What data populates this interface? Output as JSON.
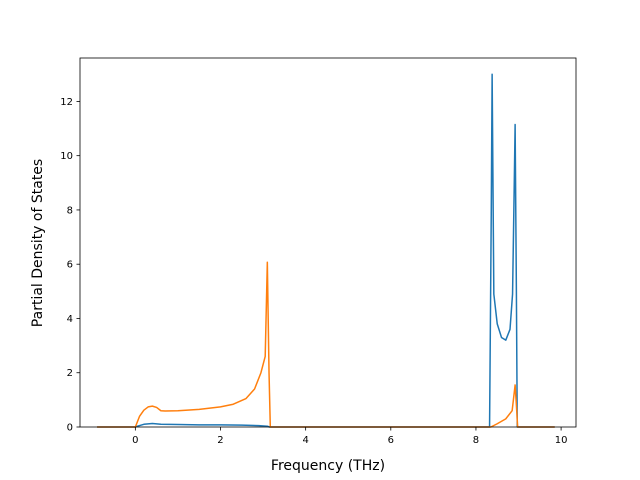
{
  "chart_data": {
    "type": "line",
    "title": "",
    "xlabel": "Frequency (THz)",
    "ylabel": "Partial Density of States",
    "xlim": [
      -1.3,
      10.35
    ],
    "ylim": [
      0,
      13.6
    ],
    "xticks": [
      0,
      2,
      4,
      6,
      8,
      10
    ],
    "yticks": [
      0,
      2,
      4,
      6,
      8,
      10,
      12
    ],
    "grid": false,
    "legend": "none",
    "series": [
      {
        "color": "#1f77b4",
        "points": [
          [
            -0.9,
            0
          ],
          [
            0.0,
            0
          ],
          [
            0.05,
            0.03
          ],
          [
            0.2,
            0.1
          ],
          [
            0.4,
            0.13
          ],
          [
            0.6,
            0.1
          ],
          [
            1.0,
            0.09
          ],
          [
            1.5,
            0.08
          ],
          [
            2.0,
            0.08
          ],
          [
            2.5,
            0.07
          ],
          [
            2.9,
            0.05
          ],
          [
            3.1,
            0.03
          ],
          [
            3.15,
            0
          ],
          [
            5.0,
            0
          ],
          [
            8.32,
            0
          ],
          [
            8.36,
            8.0
          ],
          [
            8.38,
            13.0
          ],
          [
            8.42,
            4.9
          ],
          [
            8.5,
            3.8
          ],
          [
            8.6,
            3.3
          ],
          [
            8.7,
            3.2
          ],
          [
            8.8,
            3.6
          ],
          [
            8.86,
            4.9
          ],
          [
            8.9,
            9.0
          ],
          [
            8.92,
            11.15
          ],
          [
            8.95,
            5.0
          ],
          [
            8.97,
            0
          ],
          [
            9.85,
            0
          ]
        ]
      },
      {
        "color": "#ff7f0e",
        "points": [
          [
            -0.9,
            0
          ],
          [
            0.0,
            0
          ],
          [
            0.1,
            0.4
          ],
          [
            0.2,
            0.62
          ],
          [
            0.3,
            0.74
          ],
          [
            0.4,
            0.77
          ],
          [
            0.5,
            0.72
          ],
          [
            0.6,
            0.6
          ],
          [
            0.7,
            0.59
          ],
          [
            1.0,
            0.6
          ],
          [
            1.5,
            0.65
          ],
          [
            2.0,
            0.74
          ],
          [
            2.3,
            0.84
          ],
          [
            2.6,
            1.05
          ],
          [
            2.8,
            1.4
          ],
          [
            2.95,
            2.0
          ],
          [
            3.05,
            2.6
          ],
          [
            3.1,
            6.07
          ],
          [
            3.14,
            2.0
          ],
          [
            3.17,
            0
          ],
          [
            6.0,
            0
          ],
          [
            8.35,
            0
          ],
          [
            8.5,
            0.12
          ],
          [
            8.7,
            0.3
          ],
          [
            8.85,
            0.6
          ],
          [
            8.92,
            1.55
          ],
          [
            8.95,
            0.8
          ],
          [
            8.98,
            0
          ],
          [
            9.85,
            0
          ]
        ]
      }
    ]
  }
}
